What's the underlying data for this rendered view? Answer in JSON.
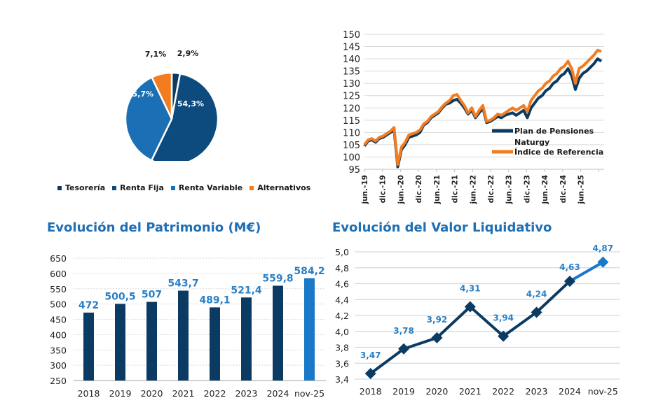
{
  "colors": {
    "dark_blue": "#0b3b63",
    "mid_blue": "#1f6fb5",
    "bright_blue": "#1a78c8",
    "orange": "#f47c20",
    "label_blue": "#2a7fc4",
    "grid": "#d9d9d9",
    "axis_text": "#333333"
  },
  "chart_data": [
    {
      "id": "asset-allocation",
      "type": "pie",
      "title": "",
      "slices": [
        {
          "name": "Tesorería",
          "value": 2.9,
          "label": "2,9%",
          "color": "#0b3b63"
        },
        {
          "name": "Renta Fija",
          "value": 54.3,
          "label": "54,3%",
          "color": "#0d4a7d"
        },
        {
          "name": "Renta Variable",
          "value": 35.7,
          "label": "35,7%",
          "color": "#1a6fb5"
        },
        {
          "name": "Alternativos",
          "value": 7.1,
          "label": "7,1%",
          "color": "#f47c20"
        }
      ],
      "legend": [
        "Tesorería",
        "Renta Fija",
        "Renta Variable",
        "Alternativos"
      ],
      "legend_position": "bottom"
    },
    {
      "id": "performance",
      "type": "line",
      "title": "",
      "ylim": [
        95,
        150
      ],
      "yticks": [
        95,
        100,
        105,
        110,
        115,
        120,
        125,
        130,
        135,
        140,
        145,
        150
      ],
      "xticks": [
        "jun.-19",
        "dic.-19",
        "jun.-20",
        "dic.-20",
        "jun.-21",
        "dic.-21",
        "jun.-22",
        "dic.-22",
        "jun.-23",
        "dic.-23",
        "jun.-24",
        "dic.-24",
        "jun.-25"
      ],
      "grid": true,
      "legend_position": "bottom-right",
      "series": [
        {
          "name": "Plan de Pensiones Naturgy",
          "legend_lines": [
            "Plan de Pensiones",
            "Naturgy"
          ],
          "color": "#0b3b63",
          "values": [
            104.5,
            106.5,
            107,
            106,
            107.5,
            108,
            109,
            110,
            111,
            96,
            103,
            105,
            108,
            108.5,
            109,
            110,
            113,
            114,
            116,
            117,
            118,
            120,
            121.5,
            122,
            123,
            123.5,
            122,
            120,
            117.5,
            119,
            116,
            118,
            120,
            114,
            114.5,
            115.5,
            116.5,
            116,
            117,
            117.5,
            118,
            117,
            118,
            119,
            116,
            120,
            122,
            124,
            125,
            127,
            128,
            130,
            131,
            133,
            134,
            136,
            133,
            127.5,
            132,
            134,
            135,
            136.5,
            138,
            140,
            139
          ]
        },
        {
          "name": "Índice de Referencia",
          "legend_lines": [
            "Índice de Referencia"
          ],
          "color": "#f47c20",
          "values": [
            105,
            107,
            107.5,
            106.5,
            108,
            108.5,
            109.5,
            110.5,
            112,
            97,
            104,
            106,
            109,
            109.5,
            110,
            111,
            113.5,
            114.5,
            116.5,
            117.5,
            118.5,
            120.5,
            122,
            123,
            125,
            125.5,
            123,
            121,
            118,
            120,
            116.5,
            119,
            121,
            114.5,
            115,
            116,
            117.5,
            117,
            118,
            119,
            120,
            119,
            120,
            121,
            118.5,
            123,
            125,
            127,
            128,
            130,
            131,
            133,
            134,
            136,
            137,
            139,
            136,
            130,
            136,
            137,
            138.5,
            140,
            141.5,
            143.5,
            143
          ]
        }
      ]
    },
    {
      "id": "patrimonio",
      "type": "bar",
      "title": "Evolución del Patrimonio (M€)",
      "categories": [
        "2018",
        "2019",
        "2020",
        "2021",
        "2022",
        "2023",
        "2024",
        "nov-25"
      ],
      "values": [
        472,
        500.5,
        507,
        543.7,
        489.1,
        521.4,
        559.8,
        584.2
      ],
      "data_labels": [
        "472",
        "500,5",
        "507",
        "543,7",
        "489,1",
        "521,4",
        "559,8",
        "584,2"
      ],
      "ylim": [
        250,
        650
      ],
      "yticks": [
        250,
        300,
        350,
        400,
        450,
        500,
        550,
        600,
        650
      ],
      "grid": true,
      "xlabel": "",
      "ylabel": ""
    },
    {
      "id": "valor-liquidativo",
      "type": "line",
      "title": "Evolución del Valor Liquidativo",
      "categories": [
        "2018",
        "2019",
        "2020",
        "2021",
        "2022",
        "2023",
        "2024",
        "nov-25"
      ],
      "values": [
        3.47,
        3.78,
        3.92,
        4.31,
        3.94,
        4.24,
        4.63,
        4.87
      ],
      "data_labels": [
        "3,47",
        "3,78",
        "3,92",
        "4,31",
        "3,94",
        "4,24",
        "4,63",
        "4,87"
      ],
      "ylim": [
        3.4,
        5.0
      ],
      "yticks": [
        "3,4",
        "3,6",
        "3,8",
        "4,0",
        "4,2",
        "4,4",
        "4,6",
        "4,8",
        "5,0"
      ],
      "grid": true,
      "xlabel": "",
      "ylabel": ""
    }
  ]
}
